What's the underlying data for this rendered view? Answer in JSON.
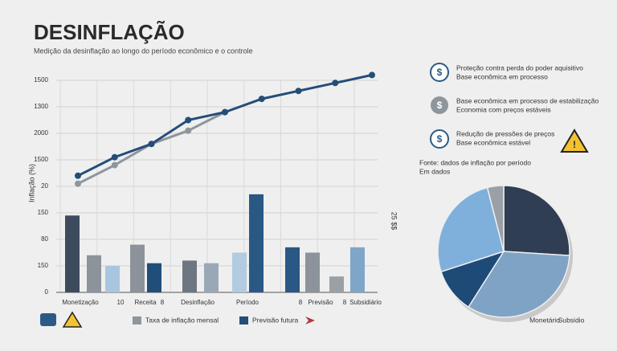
{
  "title": "DESINFLAÇÃO",
  "subtitle": "Medição da desinflação ao longo do período econômico e o controle",
  "notes": [
    [
      "Proteção contra perda do poder aquisitivo",
      "Base econômica em processo"
    ],
    [
      "Base econômica em processo de estabilização",
      "Economia com preços estáveis"
    ],
    [
      "Redução de pressões de preços",
      "Base econômica estável"
    ]
  ],
  "source": [
    "Fonte: dados de inflação por período",
    "Em dados"
  ],
  "chart_data": [
    {
      "type": "line",
      "y_label": "Inflação (%)",
      "categories": [
        null,
        null,
        null,
        null,
        null,
        null,
        null,
        null,
        null
      ],
      "ylim": [
        0,
        8
      ],
      "yticks": [
        {
          "value": 0,
          "label": "0"
        },
        {
          "value": 1,
          "label": "150"
        },
        {
          "value": 2,
          "label": "80"
        },
        {
          "value": 3,
          "label": "150"
        },
        {
          "value": 4,
          "label": "20"
        },
        {
          "value": 5,
          "label": "1500"
        },
        {
          "value": 6,
          "label": "2000"
        },
        {
          "value": 7,
          "label": "1300"
        },
        {
          "value": 8,
          "label": "1500"
        }
      ],
      "grid": true,
      "series": [
        {
          "name": "Previsão futura",
          "color": "#244d78",
          "values": [
            4.4,
            5.1,
            5.6,
            6.5,
            6.8,
            7.3,
            7.6,
            7.9,
            8.2
          ]
        },
        {
          "name": "Taxa de inflação mensal",
          "color": "#8f959c",
          "values": [
            4.1,
            4.8,
            5.6,
            6.1,
            6.8,
            null,
            null,
            null,
            null
          ]
        }
      ]
    },
    {
      "type": "bar",
      "y_label": "25 $$",
      "ylim": [
        0,
        8
      ],
      "categories": [
        "Monetização",
        null,
        "10",
        "Receita",
        "8",
        "Desinflação",
        null,
        "Período",
        null,
        "8",
        "Previsão",
        "8",
        "Subsidiário"
      ],
      "values": [
        2.9,
        1.4,
        1.0,
        1.8,
        1.1,
        1.2,
        1.1,
        1.5,
        3.7,
        1.7,
        1.5,
        0.6,
        1.7
      ],
      "colors": [
        "#3d4b5e",
        "#8d939b",
        "#a9c6e0",
        "#8d939b",
        "#1f4e7a",
        "#6e7681",
        "#9aa8b6",
        "#b3cbe0",
        "#2a5885",
        "#2a5885",
        "#8d939b",
        "#9aa0a6",
        "#7fa6c8"
      ]
    },
    {
      "type": "pie",
      "caption": [
        "Monetário",
        "Subsidio"
      ],
      "values": [
        26,
        33,
        11,
        26,
        4
      ],
      "colors": [
        "#2f3e52",
        "#7fa3c4",
        "#1e4a78",
        "#7fb0dc",
        "#9aa0a6"
      ]
    }
  ]
}
